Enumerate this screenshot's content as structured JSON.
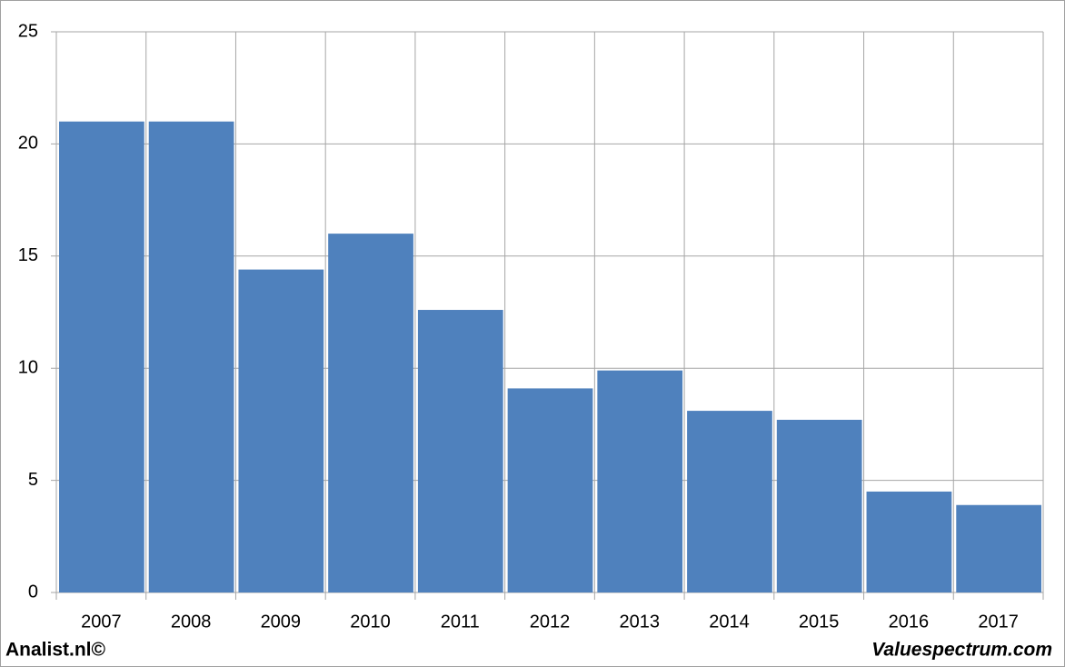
{
  "chart_data": {
    "type": "bar",
    "categories": [
      "2007",
      "2008",
      "2009",
      "2010",
      "2011",
      "2012",
      "2013",
      "2014",
      "2015",
      "2016",
      "2017"
    ],
    "values": [
      21,
      21,
      14.4,
      16,
      12.6,
      9.1,
      9.9,
      8.1,
      7.7,
      4.5,
      3.9
    ],
    "color": "#4f81bd",
    "ylim": [
      0,
      25
    ],
    "yticks": [
      0,
      5,
      10,
      15,
      20,
      25
    ],
    "grid": true,
    "annotations": [
      "Analist.nl©",
      "Valuespectrum.com"
    ]
  }
}
